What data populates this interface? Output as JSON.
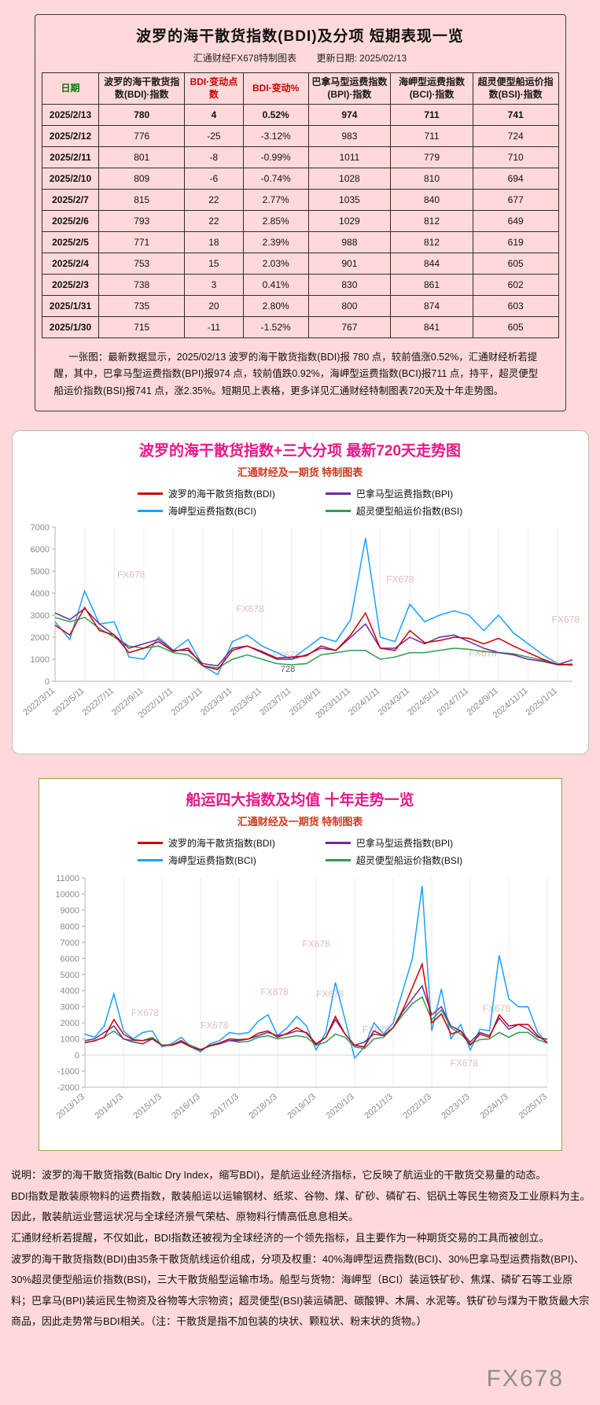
{
  "colors": {
    "page_background": "#ffd9d9",
    "chart_title": "#e8178a",
    "chart_subtitle": "#cf3a21",
    "table_date_header": "#007a00",
    "table_change_header": "#cc0000",
    "bdi_line": "#cc0000",
    "bpi_line": "#6a2ca0",
    "bci_line": "#1e9fff",
    "bsi_line": "#2e9e4f"
  },
  "table_section": {
    "title": "波罗的海干散货指数(BDI)及分项 短期表现一览",
    "subtitle_source": "汇通财经FX678特制图表",
    "subtitle_update": "更新日期: 2025/02/13",
    "headers": [
      "日期",
      "波罗的海干散货指数(BDI)·指数",
      "BDI·变动点数",
      "BDI·变动%",
      "巴拿马型运费指数(BPI)·指数",
      "海岬型运费指数(BCI)·指数",
      "超灵便型船运价指数(BSI)·指数"
    ],
    "header_colors": [
      "#007a00",
      "#1a1a1a",
      "#cc0000",
      "#cc0000",
      "#1a1a1a",
      "#1a1a1a",
      "#1a1a1a"
    ],
    "rows": [
      [
        "2025/2/13",
        "780",
        "4",
        "0.52%",
        "974",
        "711",
        "741"
      ],
      [
        "2025/2/12",
        "776",
        "-25",
        "-3.12%",
        "983",
        "711",
        "724"
      ],
      [
        "2025/2/11",
        "801",
        "-8",
        "-0.99%",
        "1011",
        "779",
        "710"
      ],
      [
        "2025/2/10",
        "809",
        "-6",
        "-0.74%",
        "1028",
        "810",
        "694"
      ],
      [
        "2025/2/7",
        "815",
        "22",
        "2.77%",
        "1035",
        "840",
        "677"
      ],
      [
        "2025/2/6",
        "793",
        "22",
        "2.85%",
        "1029",
        "812",
        "649"
      ],
      [
        "2025/2/5",
        "771",
        "18",
        "2.39%",
        "988",
        "812",
        "619"
      ],
      [
        "2025/2/4",
        "753",
        "15",
        "2.03%",
        "901",
        "844",
        "605"
      ],
      [
        "2025/2/3",
        "738",
        "3",
        "0.41%",
        "830",
        "861",
        "602"
      ],
      [
        "2025/1/31",
        "735",
        "20",
        "2.80%",
        "800",
        "874",
        "603"
      ],
      [
        "2025/1/30",
        "715",
        "-11",
        "-1.52%",
        "767",
        "841",
        "605"
      ]
    ],
    "note": "一张图：最新数据显示，2025/02/13 波罗的海干散货指数(BDI)报 780 点，较前值涨0.52%，汇通财经析若提醒，其中，巴拿马型运费指数(BPI)报974 点，较前值跌0.92%，海岬型运费指数(BCI)报711 点，持平，超灵便型船运价指数(BSI)报741 点，涨2.35%。短期见上表格，更多详见汇通财经特制图表720天及十年走势图。"
  },
  "chart_data": [
    {
      "type": "line",
      "title": "波罗的海干散货指数+三大分项 最新720天走势图",
      "subtitle": "汇通财经及一期货 特制图表",
      "ylim": [
        0,
        7000
      ],
      "y_step": 1000,
      "x_label_step": 2,
      "grid": "vertical",
      "legend_position": "top",
      "watermark": "FX678",
      "watermarks": [
        [
          0.12,
          0.33
        ],
        [
          0.35,
          0.55
        ],
        [
          0.42,
          0.85
        ],
        [
          0.64,
          0.36
        ],
        [
          0.8,
          0.84
        ],
        [
          0.96,
          0.62
        ]
      ],
      "annotations": [
        {
          "text": "728",
          "x_frac": 0.45,
          "y": 430
        }
      ],
      "x_labels": [
        "2022/3/11",
        "2022/5/11",
        "2022/7/11",
        "2022/9/11",
        "2022/11/11",
        "2023/1/11",
        "2023/3/11",
        "2023/5/11",
        "2023/7/11",
        "2023/9/11",
        "2023/11/11",
        "2024/1/11",
        "2024/3/11",
        "2024/5/11",
        "2024/7/11",
        "2024/9/11",
        "2024/11/11",
        "2025/1/11"
      ],
      "series": [
        {
          "key": "BDI",
          "name": "波罗的海干散货指数(BDI)",
          "color": "#cc0000",
          "values": [
            2550,
            2100,
            3350,
            2300,
            2100,
            1300,
            1500,
            1800,
            1350,
            1500,
            700,
            530,
            1400,
            1600,
            1350,
            1050,
            1100,
            1150,
            1600,
            1400,
            2100,
            3100,
            1500,
            1400,
            2300,
            1750,
            1850,
            2000,
            1950,
            1700,
            1950,
            1600,
            1300,
            1000,
            750,
            780
          ]
        },
        {
          "key": "BPI",
          "name": "巴拿马型运费指数(BPI)",
          "color": "#6a2ca0",
          "values": [
            3100,
            2800,
            3300,
            2600,
            2100,
            1500,
            1700,
            1900,
            1400,
            1400,
            800,
            700,
            1500,
            1600,
            1300,
            1000,
            1000,
            1200,
            1500,
            1400,
            2000,
            2600,
            1500,
            1500,
            2000,
            1700,
            2000,
            2100,
            1800,
            1500,
            1300,
            1200,
            1000,
            900,
            750,
            974
          ]
        },
        {
          "key": "BCI",
          "name": "海岬型运费指数(BCI)",
          "color": "#1e9fff",
          "values": [
            2700,
            1900,
            4100,
            2600,
            2700,
            1100,
            1000,
            2000,
            1400,
            1900,
            700,
            300,
            1800,
            2100,
            1600,
            1300,
            1000,
            1500,
            2000,
            1800,
            2800,
            6500,
            2000,
            1800,
            3500,
            2700,
            3000,
            3200,
            3000,
            2300,
            3000,
            2200,
            1700,
            1200,
            800,
            711
          ]
        },
        {
          "key": "BSI",
          "name": "超灵便型船运价指数(BSI)",
          "color": "#2e9e4f",
          "values": [
            2900,
            2700,
            2900,
            2400,
            2000,
            1600,
            1500,
            1600,
            1300,
            1200,
            700,
            600,
            1000,
            1200,
            1000,
            800,
            750,
            800,
            1200,
            1300,
            1400,
            1400,
            1000,
            1100,
            1300,
            1300,
            1400,
            1500,
            1450,
            1350,
            1300,
            1250,
            1100,
            950,
            750,
            741
          ]
        }
      ]
    },
    {
      "type": "line",
      "title": "船运四大指数及均值 十年走势一览",
      "subtitle": "汇通财经及一期货 特制图表",
      "ylim": [
        -2000,
        11000
      ],
      "y_step": 1000,
      "x_label_step": 4,
      "grid": "vertical",
      "legend_position": "top",
      "watermark": "FX678",
      "watermarks": [
        [
          0.1,
          0.66
        ],
        [
          0.25,
          0.72
        ],
        [
          0.38,
          0.56
        ],
        [
          0.47,
          0.33
        ],
        [
          0.5,
          0.57
        ],
        [
          0.6,
          0.74
        ],
        [
          0.79,
          0.9
        ],
        [
          0.86,
          0.64
        ]
      ],
      "annotations": [],
      "x_labels": [
        "2013/1/3",
        "2014/1/3",
        "2015/1/3",
        "2016/1/3",
        "2017/1/3",
        "2018/1/3",
        "2019/1/3",
        "2020/1/3",
        "2021/1/3",
        "2022/1/3",
        "2023/1/3",
        "2024/1/3",
        "2025/1/3"
      ],
      "series": [
        {
          "key": "BDI",
          "name": "波罗的海干散货指数(BDI)",
          "color": "#cc0000",
          "values": [
            780,
            880,
            1100,
            2200,
            1300,
            950,
            900,
            1000,
            600,
            600,
            900,
            500,
            310,
            600,
            750,
            1000,
            950,
            1000,
            1350,
            1500,
            1100,
            1350,
            1700,
            1350,
            650,
            1100,
            2400,
            1300,
            600,
            500,
            1500,
            1200,
            1700,
            2800,
            4200,
            5650,
            2000,
            2550,
            1300,
            1500,
            600,
            1300,
            1100,
            2500,
            1800,
            1900,
            1900,
            1200,
            780
          ]
        },
        {
          "key": "BPI",
          "name": "巴拿马型运费指数(BPI)",
          "color": "#6a2ca0",
          "values": [
            900,
            1000,
            1400,
            1800,
            1000,
            800,
            700,
            1000,
            600,
            600,
            800,
            500,
            300,
            600,
            700,
            900,
            900,
            1000,
            1200,
            1400,
            1200,
            1300,
            1500,
            1400,
            700,
            1100,
            2200,
            1300,
            600,
            800,
            1300,
            1200,
            1700,
            2700,
            3500,
            4300,
            2500,
            3000,
            1800,
            1500,
            800,
            1400,
            1200,
            2300,
            1600,
            1900,
            1600,
            1100,
            974
          ]
        },
        {
          "key": "BCI",
          "name": "海岬型运费指数(BCI)",
          "color": "#1e9fff",
          "values": [
            1300,
            1100,
            1800,
            3800,
            1500,
            1000,
            1400,
            1500,
            500,
            700,
            1100,
            500,
            200,
            700,
            900,
            1400,
            1300,
            1400,
            2100,
            2500,
            1200,
            1700,
            2400,
            1800,
            300,
            1400,
            4500,
            2200,
            -200,
            500,
            2000,
            1300,
            2000,
            4000,
            6000,
            10500,
            1500,
            4100,
            1000,
            1900,
            300,
            1600,
            1500,
            6200,
            3500,
            3000,
            3000,
            1400,
            711
          ]
        },
        {
          "key": "BSI",
          "name": "超灵便型船运价指数(BSI)",
          "color": "#2e9e4f",
          "values": [
            750,
            900,
            1100,
            1500,
            1000,
            900,
            900,
            1100,
            600,
            650,
            800,
            600,
            350,
            550,
            700,
            900,
            800,
            850,
            1100,
            1200,
            1000,
            1100,
            1200,
            1100,
            600,
            800,
            1300,
            1100,
            500,
            400,
            1000,
            1100,
            1700,
            2500,
            3200,
            3600,
            2200,
            2800,
            1700,
            1300,
            700,
            950,
            1000,
            1400,
            1100,
            1400,
            1400,
            950,
            741
          ]
        }
      ]
    }
  ],
  "description": {
    "lines": [
      "说明：波罗的海干散货指数(Baltic Dry Index，缩写BDI)，是航运业经济指标，它反映了航运业的干散货交易量的动态。",
      "BDI指数是散装原物料的运费指数，散装船运以运输钢材、纸浆、谷物、煤、矿砂、磷矿石、铝矾土等民生物资及工业原料为主。",
      "因此，散装航运业营运状况与全球经济景气荣枯、原物料行情高低息息相关。",
      "汇通财经析若提醒，不仅如此，BDI指数还被视为全球经济的一个领先指标，且主要作为一种期货交易的工具而被创立。",
      "波罗的海干散货指数(BDI)由35条干散货航线运价组成，分项及权重：40%海岬型运费指数(BCI)、30%巴拿马型运费指数(BPI)、30%超灵便型船运价指数(BSI)，三大干散货船型运输市场。船型与货物：海岬型（BCI）装运铁矿砂、焦煤、磷矿石等工业原料；巴拿马(BPI)装运民生物资及谷物等大宗物资；超灵便型(BSI)装运磷肥、碳酸钾、木屑、水泥等。铁矿砂与煤为干散货最大宗商品，因此走势常与BDI相关。（注：干散货是指不加包装的块状、颗粒状、粉末状的货物。）"
    ]
  },
  "footer": {
    "watermark": "FX678"
  }
}
